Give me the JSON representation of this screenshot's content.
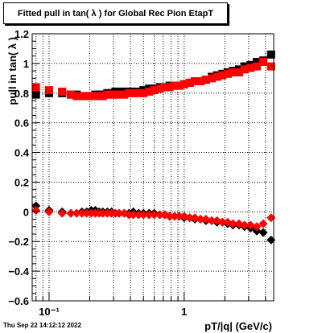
{
  "title": "Fitted pull in tan( λ ) for Global Rec Pion EtapT",
  "datestamp": "Thu Sep 22 14:12:12 2022",
  "chart_data": {
    "type": "scatter",
    "title": "Fitted pull in tan( λ ) for Global Rec Pion EtapT",
    "xlabel": "pT/|q| (GeV/c)",
    "ylabel": "pull in tan( λ )",
    "xscale": "log",
    "xlim": [
      0.075,
      4.6
    ],
    "ylim": [
      -0.6,
      1.2
    ],
    "grid": true,
    "yticks": [
      "−0.6",
      "−0.4",
      "−0.2",
      "0",
      "0.2",
      "0.4",
      "0.6",
      "0.8",
      "1",
      "1.2"
    ],
    "xticks": [
      "10⁻¹",
      "1"
    ],
    "series": [
      {
        "color": "#000000",
        "marker": "square",
        "x": [
          0.08,
          0.1,
          0.125,
          0.145,
          0.16,
          0.175,
          0.19,
          0.205,
          0.22,
          0.235,
          0.25,
          0.27,
          0.29,
          0.31,
          0.33,
          0.36,
          0.39,
          0.42,
          0.46,
          0.5,
          0.55,
          0.6,
          0.66,
          0.72,
          0.78,
          0.85,
          0.92,
          1.0,
          1.1,
          1.2,
          1.32,
          1.45,
          1.6,
          1.75,
          1.92,
          2.1,
          2.3,
          2.55,
          2.8,
          3.1,
          3.45,
          3.85,
          4.4
        ],
        "y": [
          0.79,
          0.8,
          0.8,
          0.79,
          0.79,
          0.78,
          0.78,
          0.78,
          0.79,
          0.79,
          0.79,
          0.8,
          0.8,
          0.81,
          0.81,
          0.81,
          0.81,
          0.81,
          0.81,
          0.82,
          0.83,
          0.83,
          0.84,
          0.84,
          0.85,
          0.85,
          0.85,
          0.86,
          0.87,
          0.88,
          0.88,
          0.89,
          0.91,
          0.92,
          0.93,
          0.94,
          0.95,
          0.96,
          0.98,
          0.99,
          1.01,
          1.02,
          1.06
        ]
      },
      {
        "color": "#ff0000",
        "marker": "square",
        "x": [
          0.08,
          0.1,
          0.125,
          0.145,
          0.16,
          0.175,
          0.19,
          0.205,
          0.22,
          0.235,
          0.25,
          0.27,
          0.29,
          0.31,
          0.33,
          0.36,
          0.39,
          0.42,
          0.46,
          0.5,
          0.55,
          0.6,
          0.66,
          0.72,
          0.78,
          0.85,
          0.92,
          1.0,
          1.1,
          1.2,
          1.32,
          1.45,
          1.6,
          1.75,
          1.92,
          2.1,
          2.3,
          2.55,
          2.8,
          3.1,
          3.45,
          3.85,
          4.4
        ],
        "y": [
          0.84,
          0.82,
          0.81,
          0.79,
          0.78,
          0.78,
          0.78,
          0.78,
          0.78,
          0.78,
          0.78,
          0.79,
          0.79,
          0.79,
          0.79,
          0.79,
          0.8,
          0.8,
          0.8,
          0.8,
          0.81,
          0.82,
          0.83,
          0.84,
          0.84,
          0.85,
          0.85,
          0.86,
          0.87,
          0.88,
          0.88,
          0.89,
          0.9,
          0.91,
          0.92,
          0.93,
          0.94,
          0.94,
          0.96,
          0.97,
          0.98,
          1.01,
          0.98
        ]
      },
      {
        "color": "#000000",
        "marker": "diamond",
        "x": [
          0.08,
          0.1,
          0.125,
          0.145,
          0.16,
          0.175,
          0.19,
          0.205,
          0.22,
          0.235,
          0.25,
          0.27,
          0.29,
          0.31,
          0.33,
          0.36,
          0.39,
          0.42,
          0.46,
          0.5,
          0.55,
          0.6,
          0.66,
          0.72,
          0.78,
          0.85,
          0.92,
          1.0,
          1.1,
          1.2,
          1.32,
          1.45,
          1.6,
          1.75,
          1.92,
          2.1,
          2.3,
          2.55,
          2.8,
          3.1,
          3.45,
          3.85,
          4.4
        ],
        "y": [
          0.04,
          0.01,
          0.0,
          -0.01,
          -0.01,
          0.0,
          0.0,
          0.01,
          0.01,
          0.0,
          0.0,
          0.0,
          0.0,
          -0.01,
          -0.01,
          -0.01,
          -0.01,
          0.0,
          -0.01,
          -0.01,
          -0.01,
          -0.01,
          -0.02,
          -0.02,
          -0.03,
          -0.03,
          -0.03,
          -0.04,
          -0.04,
          -0.05,
          -0.05,
          -0.06,
          -0.06,
          -0.07,
          -0.07,
          -0.08,
          -0.09,
          -0.09,
          -0.1,
          -0.11,
          -0.13,
          -0.14,
          -0.19
        ]
      },
      {
        "color": "#ff0000",
        "marker": "diamond",
        "x": [
          0.08,
          0.1,
          0.125,
          0.145,
          0.16,
          0.175,
          0.19,
          0.205,
          0.22,
          0.235,
          0.25,
          0.27,
          0.29,
          0.31,
          0.33,
          0.36,
          0.39,
          0.42,
          0.46,
          0.5,
          0.55,
          0.6,
          0.66,
          0.72,
          0.78,
          0.85,
          0.92,
          1.0,
          1.1,
          1.2,
          1.32,
          1.45,
          1.6,
          1.75,
          1.92,
          2.1,
          2.3,
          2.55,
          2.8,
          3.1,
          3.45,
          3.85,
          4.4
        ],
        "y": [
          0.01,
          0.0,
          -0.01,
          -0.01,
          -0.01,
          -0.01,
          -0.01,
          -0.01,
          -0.01,
          -0.01,
          -0.01,
          -0.01,
          -0.01,
          -0.01,
          -0.01,
          -0.01,
          -0.02,
          -0.02,
          -0.02,
          -0.02,
          -0.02,
          -0.02,
          -0.02,
          -0.02,
          -0.03,
          -0.03,
          -0.03,
          -0.03,
          -0.04,
          -0.04,
          -0.05,
          -0.05,
          -0.06,
          -0.06,
          -0.07,
          -0.07,
          -0.08,
          -0.08,
          -0.09,
          -0.09,
          -0.1,
          -0.08,
          -0.04
        ]
      }
    ]
  }
}
